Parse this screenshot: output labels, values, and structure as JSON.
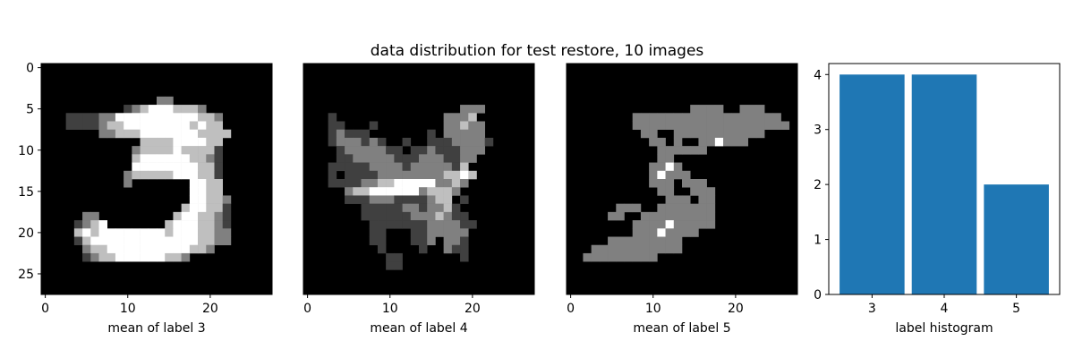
{
  "figure": {
    "suptitle": "data distribution for test restore, 10 images"
  },
  "chart_data": [
    {
      "type": "heatmap",
      "colormap": "gray",
      "xlabel": "mean of label 3",
      "ylabel": "",
      "x_ticks": [
        "0",
        "10",
        "20"
      ],
      "y_ticks": [
        "0",
        "5",
        "10",
        "15",
        "20",
        "25"
      ],
      "grid_size": [
        28,
        28
      ],
      "value_range": [
        0,
        1
      ],
      "note_levels": "0=black, 0.25=dark gray, 0.5=gray, 0.75=light gray, 1=white",
      "pixels": [
        "............................",
        "............................",
        "............................",
        "............................",
        "..............22............",
        "..........1234443332........",
        "...1111224444444444332......",
        "...1111233444444443433......",
        ".......2233344444443333.....",
        "............3333444433......",
        "...........23333433331......",
        "...........34444443321......",
        "...........44444444331......",
        "..........233333444331......",
        "..........2.......4433......",
        "..................4433......",
        "..................44332.....",
        ".................344331.....",
        ".....22.........3443321.....",
        "....1234.......34443321.....",
        "....3434444444434443322.....",
        "....1344444444444443322.....",
        ".....2334444444444332.......",
        ".....1233444444332..........",
        "...........................",
        "...........................",
        "............................",
        "............................"
      ]
    },
    {
      "type": "heatmap",
      "colormap": "gray",
      "xlabel": "mean of label 4",
      "ylabel": "",
      "x_ticks": [
        "0",
        "10",
        "20"
      ],
      "y_ticks": [],
      "grid_size": [
        28,
        28
      ],
      "value_range": [
        0,
        1
      ],
      "note_levels": "0=black, 0.25=dark gray, 0.5=gray, 0.75=light gray, 1=white",
      "pixels": [
        "............................",
        "............................",
        "............................",
        "............................",
        "..........................",
        "...................222......",
        "...1.............2223.......",
        "...11...1........22322......",
        "...12111.......1.22222......",
        "...1222121..1..11122221.....",
        "....12222211.112111222.....",
        "....11222221112221122......",
        "...11111222212222213.......",
        "...1.1111222222223343......",
        "...11112233444442232.......",
        ".....23344444423332........",
        ".....1112221111233.1.......",
        ".......111112212231........",
        ".......1111112223211.......",
        "........1111111222211......",
        "........11...1122222.......",
        "........11...112.221.......",
        ".........1....1..211.......",
        "..........11.......1.......",
        "..........11................",
        "............................",
        "............................",
        "............................"
      ]
    },
    {
      "type": "heatmap",
      "colormap": "gray",
      "xlabel": "mean of label 5",
      "ylabel": "",
      "x_ticks": [
        "0",
        "10",
        "20"
      ],
      "y_ticks": [],
      "grid_size": [
        28,
        28
      ],
      "value_range": [
        0,
        1
      ],
      "note_levels": "0=black, 0.25=dark gray, 0.5=gray, 0.75=light gray, 1=white",
      "pixels": [
        "............................",
        "............................",
        "............................",
        "............................",
        "............................",
        "...............2222..222....",
        "........222222222222222222..",
        "........2222222222222222222.",
        ".........22..22222222222....",
        "..........22.2..224222......",
        "...........222222...........",
        "...........22...............",
        "..........2242..............",
        "..........24222.............",
        "..........222.222...........",
        "...........22..222..........",
        "............222.22..........",
        "......222..2222222..........",
        ".....22..222222222..........",
        "........2222422222..........",
        "........22242222............",
        ".....222222222..............",
        "...22222222222..............",
        "..222222222.................",
        "............................",
        "............................",
        "............................",
        "............................"
      ]
    },
    {
      "type": "bar",
      "categories": [
        "3",
        "4",
        "5"
      ],
      "values": [
        4,
        4,
        2
      ],
      "xlabel": "label histogram",
      "ylabel": "",
      "ylim": [
        0,
        4.2
      ],
      "y_ticks": [
        "0",
        "1",
        "2",
        "3",
        "4"
      ],
      "colors": [
        "#1f77b4",
        "#1f77b4",
        "#1f77b4"
      ],
      "grid": false
    }
  ]
}
